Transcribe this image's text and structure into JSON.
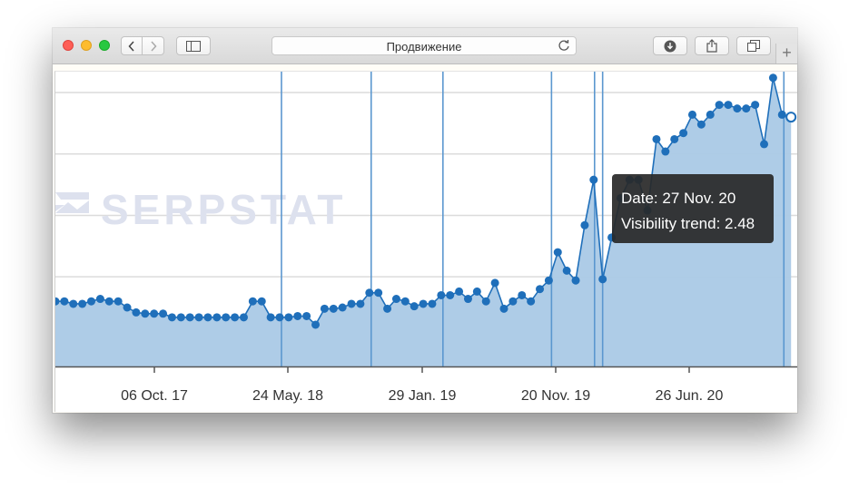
{
  "browser": {
    "address_title": "Продвижение",
    "icons": [
      "back-icon",
      "forward-icon",
      "sidebar-icon",
      "reload-icon",
      "download-icon",
      "share-icon",
      "tabs-icon",
      "plus-icon"
    ],
    "newtab_label": "+"
  },
  "watermark": "SERPSTAT",
  "tooltip": {
    "date_label": "Date:",
    "date_value": "27 Nov. 20",
    "trend_label": "Visibility trend:",
    "trend_value": "2.48"
  },
  "chart_data": {
    "type": "area",
    "x_ticks": [
      "06 Oct. 17",
      "24 May. 18",
      "29 Jan. 19",
      "20 Nov. 19",
      "26 Jun. 20"
    ],
    "series": [
      {
        "values": [
          0.98,
          0.98,
          0.96,
          0.96,
          0.98,
          1.0,
          0.98,
          0.98,
          0.93,
          0.89,
          0.88,
          0.88,
          0.88,
          0.85,
          0.85,
          0.85,
          0.85,
          0.85,
          0.85,
          0.85,
          0.85,
          0.85,
          0.98,
          0.98,
          0.85,
          0.85,
          0.85,
          0.86,
          0.86,
          0.79,
          0.92,
          0.92,
          0.93,
          0.96,
          0.96,
          1.05,
          1.05,
          0.92,
          1.0,
          0.98,
          0.94,
          0.96,
          0.96,
          1.03,
          1.03,
          1.06,
          1.0,
          1.06,
          0.98,
          1.13,
          0.92,
          0.98,
          1.03,
          0.98,
          1.08,
          1.15,
          1.38,
          1.23,
          1.15,
          1.6,
          1.97,
          1.16,
          1.5,
          1.82,
          1.97,
          1.97,
          1.72,
          2.3,
          2.2,
          2.3,
          2.35,
          2.5,
          2.42,
          2.5,
          2.58,
          2.58,
          2.55,
          2.55,
          2.58,
          2.26,
          2.8,
          2.5,
          2.48
        ],
        "color": "#1f6fba",
        "fill": "#aac9e6"
      }
    ],
    "ylim": [
      0.45,
      2.85
    ],
    "grid": true,
    "gridlines": [
      1.18,
      1.68,
      2.18,
      2.68
    ],
    "markers": [
      25.2,
      35.2,
      43.2,
      55.3,
      60.1,
      61.0,
      81.2
    ],
    "highlight_index": 82
  }
}
